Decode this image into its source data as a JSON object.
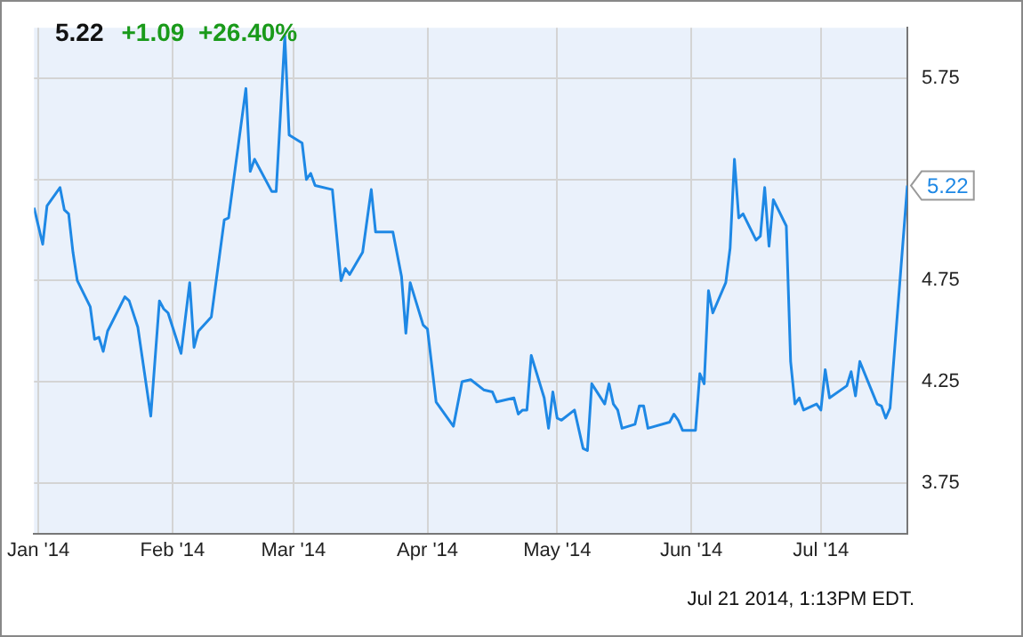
{
  "chart_data": {
    "type": "line",
    "title": "5.22",
    "subtitle": "+1.09  +26.40%",
    "annotations": [
      {
        "text": "5.22",
        "x": "2014-07-21",
        "y": 5.22
      },
      "Jul 21 2014, 1:13PM EDT."
    ],
    "x": [
      "2013-12-31",
      "2014-01-02",
      "2014-01-03",
      "2014-01-06",
      "2014-01-07",
      "2014-01-08",
      "2014-01-09",
      "2014-01-10",
      "2014-01-13",
      "2014-01-14",
      "2014-01-15",
      "2014-01-16",
      "2014-01-17",
      "2014-01-21",
      "2014-01-22",
      "2014-01-24",
      "2014-01-27",
      "2014-01-29",
      "2014-01-30",
      "2014-01-31",
      "2014-02-03",
      "2014-02-05",
      "2014-02-06",
      "2014-02-07",
      "2014-02-10",
      "2014-02-13",
      "2014-02-14",
      "2014-02-18",
      "2014-02-19",
      "2014-02-20",
      "2014-02-24",
      "2014-02-25",
      "2014-02-27",
      "2014-02-28",
      "2014-03-03",
      "2014-03-04",
      "2014-03-05",
      "2014-03-06",
      "2014-03-10",
      "2014-03-12",
      "2014-03-13",
      "2014-03-14",
      "2014-03-17",
      "2014-03-19",
      "2014-03-20",
      "2014-03-24",
      "2014-03-26",
      "2014-03-27",
      "2014-03-28",
      "2014-03-31",
      "2014-04-01",
      "2014-04-03",
      "2014-04-07",
      "2014-04-09",
      "2014-04-11",
      "2014-04-14",
      "2014-04-16",
      "2014-04-17",
      "2014-04-21",
      "2014-04-22",
      "2014-04-23",
      "2014-04-24",
      "2014-04-25",
      "2014-04-28",
      "2014-04-29",
      "2014-04-30",
      "2014-05-01",
      "2014-05-02",
      "2014-05-05",
      "2014-05-07",
      "2014-05-08",
      "2014-05-09",
      "2014-05-12",
      "2014-05-13",
      "2014-05-14",
      "2014-05-15",
      "2014-05-16",
      "2014-05-19",
      "2014-05-20",
      "2014-05-21",
      "2014-05-22",
      "2014-05-27",
      "2014-05-28",
      "2014-05-29",
      "2014-05-30",
      "2014-06-02",
      "2014-06-03",
      "2014-06-04",
      "2014-06-05",
      "2014-06-06",
      "2014-06-09",
      "2014-06-10",
      "2014-06-11",
      "2014-06-12",
      "2014-06-13",
      "2014-06-16",
      "2014-06-17",
      "2014-06-18",
      "2014-06-19",
      "2014-06-20",
      "2014-06-23",
      "2014-06-24",
      "2014-06-25",
      "2014-06-26",
      "2014-06-27",
      "2014-06-30",
      "2014-07-01",
      "2014-07-02",
      "2014-07-03",
      "2014-07-07",
      "2014-07-08",
      "2014-07-09",
      "2014-07-10",
      "2014-07-14",
      "2014-07-15",
      "2014-07-16",
      "2014-07-17",
      "2014-07-21"
    ],
    "series": [
      {
        "color": "#1e88e5",
        "values": [
          5.11,
          4.93,
          5.12,
          5.21,
          5.1,
          5.08,
          4.89,
          4.75,
          4.62,
          4.46,
          4.47,
          4.4,
          4.5,
          4.67,
          4.65,
          4.52,
          4.08,
          4.65,
          4.61,
          4.59,
          4.39,
          4.74,
          4.42,
          4.5,
          4.57,
          5.05,
          5.06,
          5.7,
          5.29,
          5.35,
          5.19,
          5.19,
          5.96,
          5.47,
          5.43,
          5.25,
          5.28,
          5.22,
          5.2,
          4.75,
          4.81,
          4.78,
          4.89,
          5.2,
          4.99,
          4.99,
          4.77,
          4.49,
          4.74,
          4.53,
          4.51,
          4.15,
          4.03,
          4.25,
          4.26,
          4.21,
          4.2,
          4.15,
          4.17,
          4.09,
          4.11,
          4.11,
          4.38,
          4.17,
          4.02,
          4.2,
          4.07,
          4.06,
          4.11,
          3.92,
          3.91,
          4.24,
          4.14,
          4.24,
          4.14,
          4.11,
          4.02,
          4.04,
          4.13,
          4.13,
          4.02,
          4.05,
          4.09,
          4.06,
          4.01,
          4.01,
          4.29,
          4.24,
          4.7,
          4.59,
          4.74,
          4.91,
          5.35,
          5.06,
          5.08,
          4.95,
          4.97,
          5.21,
          4.92,
          5.15,
          5.02,
          4.35,
          4.14,
          4.17,
          4.11,
          4.14,
          4.11,
          4.31,
          4.17,
          4.23,
          4.3,
          4.18,
          4.35,
          4.14,
          4.13,
          4.07,
          4.12,
          5.22
        ]
      }
    ],
    "xlim": [
      "2013-12-31",
      "2014-07-21"
    ],
    "xticks": [
      {
        "value": "2014-01-01",
        "label": "Jan '14"
      },
      {
        "value": "2014-02-01",
        "label": "Feb '14"
      },
      {
        "value": "2014-03-01",
        "label": "Mar '14"
      },
      {
        "value": "2014-04-01",
        "label": "Apr '14"
      },
      {
        "value": "2014-05-01",
        "label": "May '14"
      },
      {
        "value": "2014-06-01",
        "label": "Jun '14"
      },
      {
        "value": "2014-07-01",
        "label": "Jul '14"
      }
    ],
    "ylim": [
      3.5,
      6.0
    ],
    "yticks": [
      3.75,
      4.25,
      4.75,
      {
        "value": 5.25,
        "label": null
      },
      5.75
    ],
    "grid": true,
    "legend": false,
    "marker": "none",
    "line_style": "solid"
  }
}
